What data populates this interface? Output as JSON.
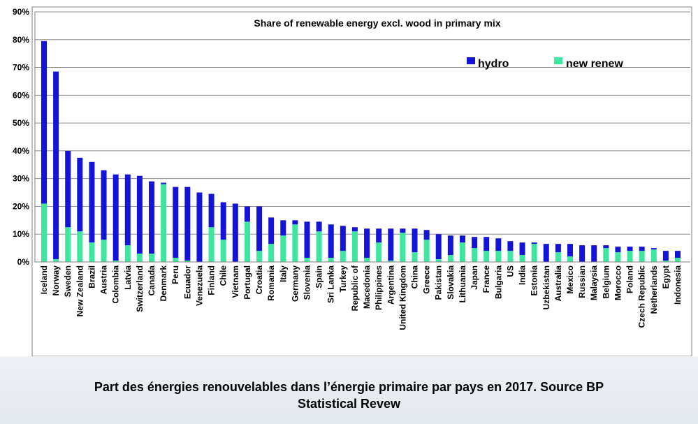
{
  "caption": {
    "line1": "Part des énergies renouvelables dans l’énergie primaire par pays en 2017. Source BP",
    "line2": "Statistical Revew"
  },
  "chart_data": {
    "type": "bar",
    "stacked": true,
    "title": "Share of renewable energy excl. wood in primary mix",
    "xlabel": "",
    "ylabel": "",
    "ylim": [
      0,
      90
    ],
    "yticks": [
      "0%",
      "10%",
      "20%",
      "30%",
      "40%",
      "50%",
      "60%",
      "70%",
      "80%",
      "90%"
    ],
    "grid": true,
    "legend_position": "top-right",
    "categories": [
      "Iceland",
      "Norway",
      "Sweden",
      "New Zealand",
      "Brazil",
      "Austria",
      "Colombia",
      "Latvia",
      "Switzerland",
      "Canada",
      "Denmark",
      "Peru",
      "Ecuador",
      "Venezuela",
      "Finland",
      "Chile",
      "Vietnam",
      "Portugal",
      "Croatia",
      "Romania",
      "Italy",
      "Germany",
      "Slovenia",
      "Spain",
      "Sri Lanka",
      "Turkey",
      "Republic of",
      "Macedonia",
      "Philippines",
      "Argentina",
      "United Kingdom",
      "China",
      "Greece",
      "Pakistan",
      "Slovakia",
      "Lithuania",
      "Japan",
      "France",
      "Bulgaria",
      "US",
      "India",
      "Estonia",
      "Uzbekistan",
      "Australia",
      "Mexico",
      "Russian",
      "Malaysia",
      "Belgium",
      "Morocco",
      "Poland",
      "Czech Republic",
      "Netherlands",
      "Egypt",
      "Indonesia"
    ],
    "series": [
      {
        "name": "new renew",
        "color": "#3ee6a0",
        "values": [
          21,
          1,
          12.5,
          11,
          7,
          8,
          0.5,
          6,
          3,
          3,
          28,
          1.5,
          0.5,
          0,
          12.5,
          8,
          0,
          14.5,
          4,
          6.5,
          9.5,
          13.5,
          1.5,
          11,
          1.5,
          4,
          11,
          1.5,
          7,
          0.5,
          10.5,
          3.5,
          8,
          1,
          2.5,
          7,
          5,
          4,
          4,
          4,
          2.5,
          6.5,
          0,
          3.5,
          2,
          0,
          0,
          5,
          3.5,
          4,
          4,
          4.5,
          0.5,
          1.5
        ]
      },
      {
        "name": "hydro",
        "color": "#1414d8",
        "values": [
          58.5,
          67.5,
          27.5,
          26.5,
          29,
          25,
          31,
          25.5,
          28,
          26,
          0.5,
          25.5,
          26.5,
          25,
          12,
          13.5,
          21,
          5.5,
          16,
          9.5,
          5.5,
          1.5,
          13,
          3.5,
          12,
          9,
          1.5,
          10.5,
          5,
          11.5,
          1.5,
          8.5,
          3.5,
          9,
          7,
          2.5,
          4,
          5,
          4.5,
          3.5,
          4.5,
          0.5,
          6.5,
          3,
          4.5,
          6,
          6,
          1,
          2,
          1.5,
          1.5,
          0.5,
          3.5,
          2.5
        ]
      }
    ]
  }
}
